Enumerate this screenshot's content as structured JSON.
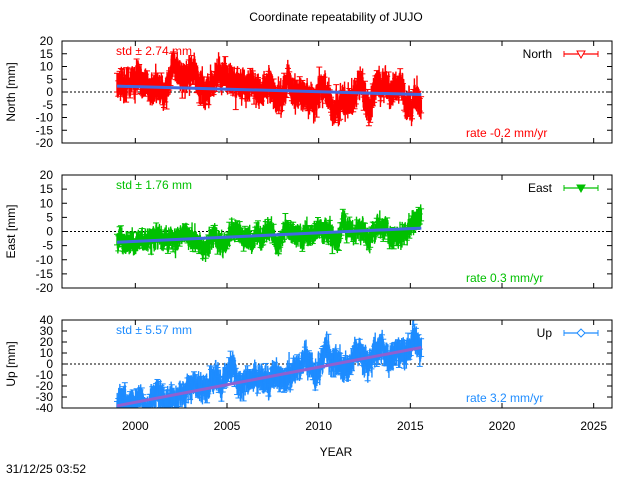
{
  "chart_data": [
    {
      "type": "scatter",
      "title": "Coordinate repeatability of JUJO",
      "xlabel": "YEAR",
      "ylabel": "North [mm]",
      "xlim": [
        1996,
        2026
      ],
      "ylim": [
        -20,
        20
      ],
      "yticks": [
        "20",
        "15",
        "10",
        "5",
        "0",
        "-5",
        "-10",
        "-15",
        "-20"
      ],
      "series_name": "North",
      "color": "#ff0000",
      "fit_color": "#4169e1",
      "marker": "open-triangle-down",
      "x_range": [
        1999.0,
        2015.6
      ],
      "trend": [
        2.3,
        -1.0
      ],
      "std_label": "std ± 2.74 mm",
      "rate_label": "rate -0.2 mm/yr",
      "std": 2.74,
      "rate": -0.2,
      "zero_line": true
    },
    {
      "type": "scatter",
      "ylabel": "East [mm]",
      "xlim": [
        1996,
        2026
      ],
      "ylim": [
        -20,
        20
      ],
      "yticks": [
        "20",
        "15",
        "10",
        "5",
        "0",
        "-5",
        "-10",
        "-15",
        "-20"
      ],
      "series_name": "East",
      "color": "#00c000",
      "fit_color": "#4169e1",
      "marker": "filled-triangle-down",
      "x_range": [
        1999.0,
        2015.6
      ],
      "trend": [
        -3.8,
        1.2
      ],
      "std_label": "std ± 1.76 mm",
      "rate_label": "rate  0.3 mm/yr",
      "std": 1.76,
      "rate": 0.3,
      "zero_line": true
    },
    {
      "type": "scatter",
      "ylabel": "Up [mm]",
      "xlim": [
        1996,
        2026
      ],
      "ylim": [
        -40,
        40
      ],
      "yticks": [
        "40",
        "30",
        "20",
        "10",
        "0",
        "-10",
        "-20",
        "-30",
        "-40"
      ],
      "series_name": "Up",
      "color": "#1e8cff",
      "fit_color": "#9060d0",
      "marker": "open-diamond",
      "x_range": [
        1999.0,
        2015.6
      ],
      "trend": [
        -38,
        15
      ],
      "std_label": "std ± 5.57 mm",
      "rate_label": "rate  3.2 mm/yr",
      "std": 5.57,
      "rate": 3.2,
      "zero_line": true
    }
  ],
  "xticks": [
    "2000",
    "2005",
    "2010",
    "2015",
    "2020",
    "2025"
  ],
  "timestamp": "31/12/25 03:52"
}
